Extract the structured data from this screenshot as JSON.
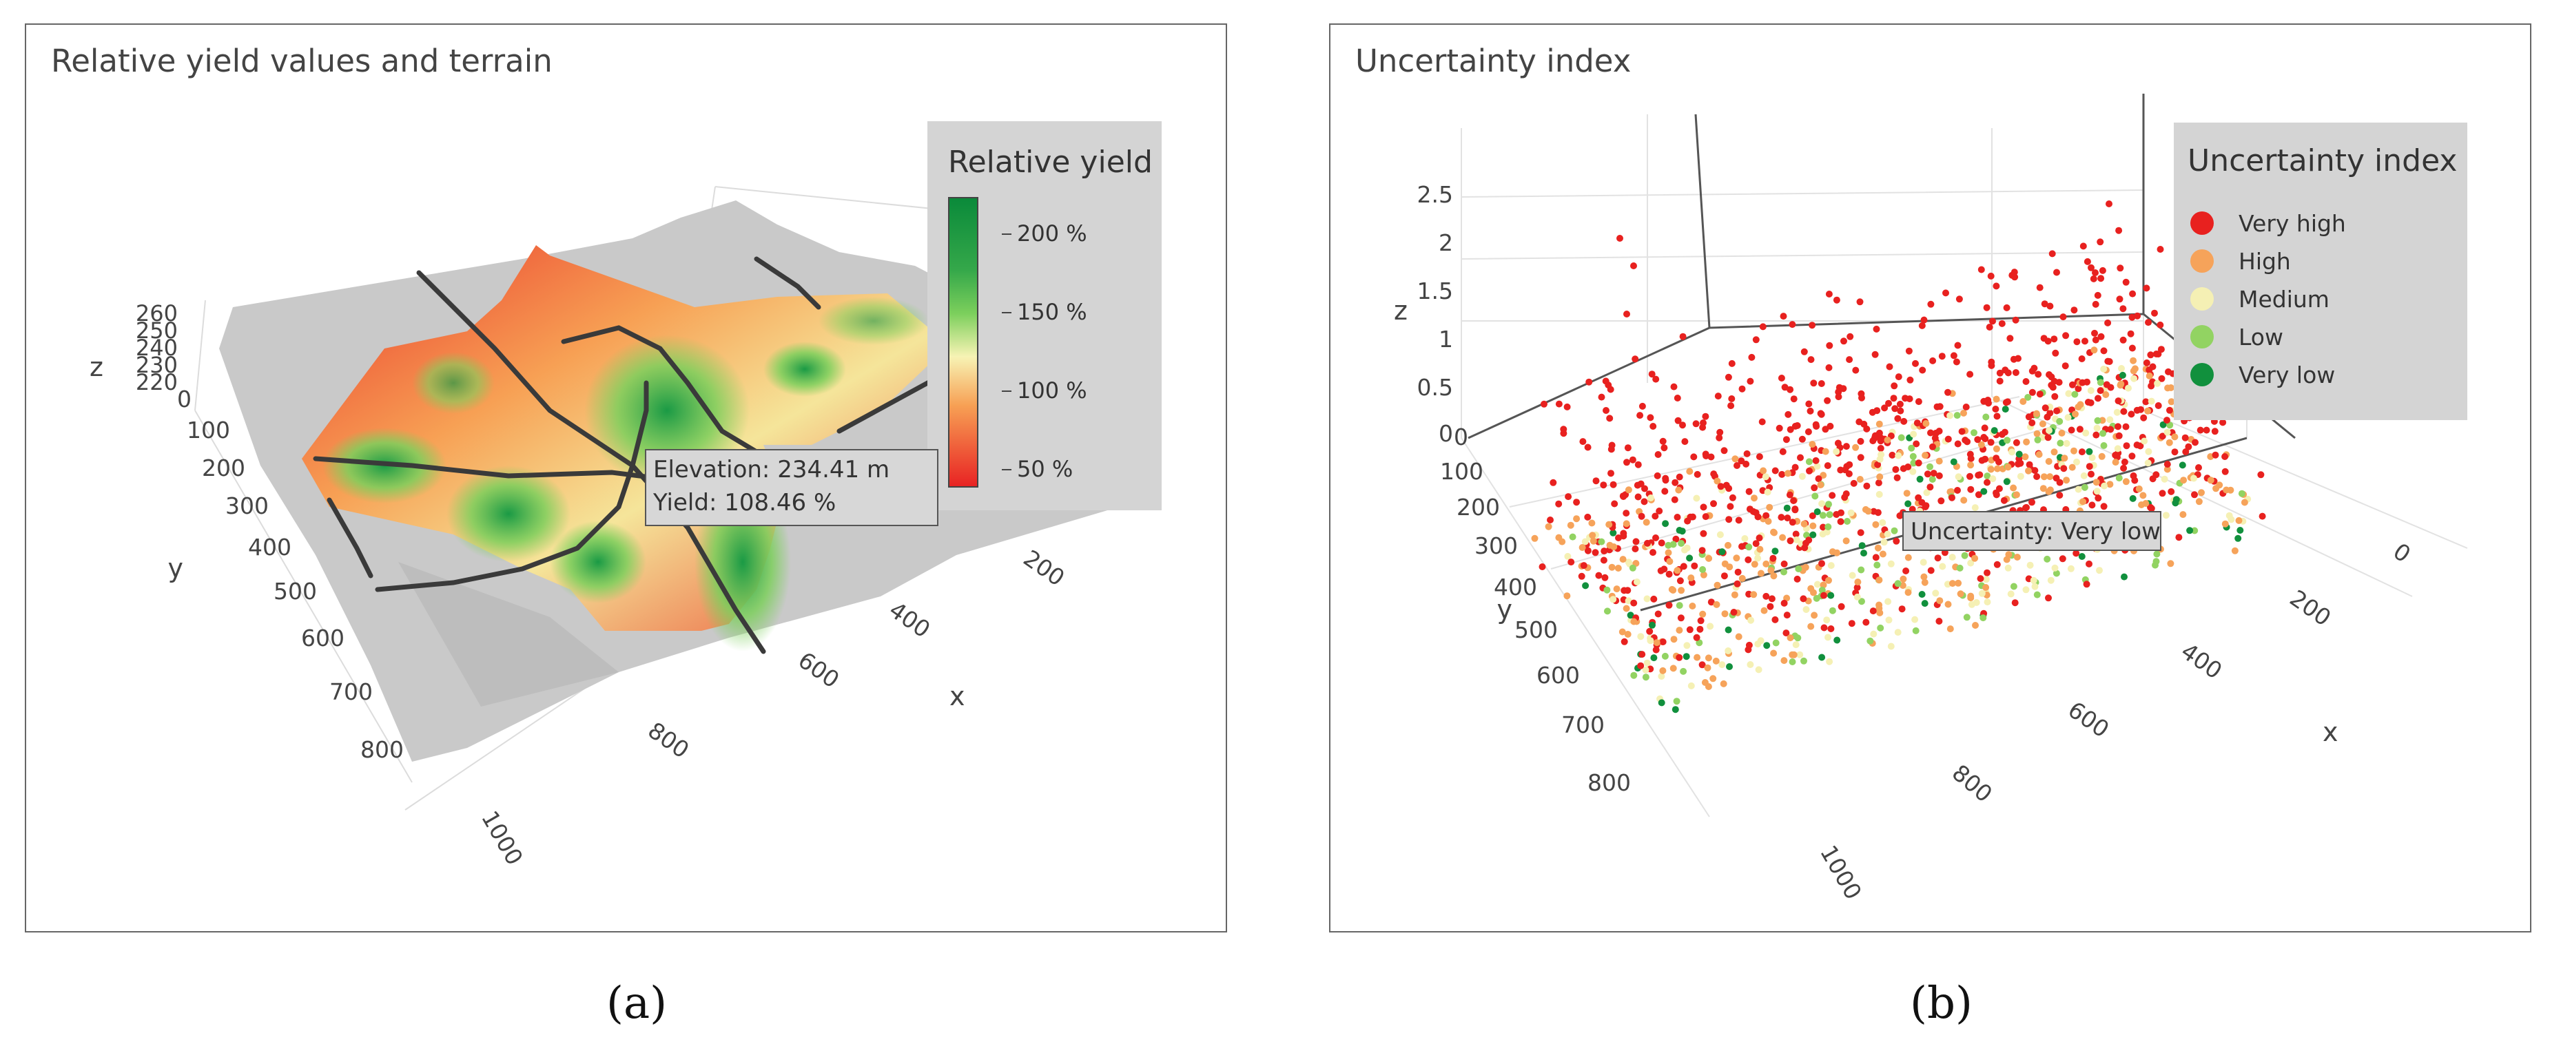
{
  "captions": {
    "a": "(a)",
    "b": "(b)"
  },
  "chart_data": [
    {
      "type": "surface3d",
      "title": "Relative yield values and terrain",
      "xlabel": "x",
      "ylabel": "y",
      "zlabel": "z",
      "x_ticks": [
        "200",
        "400",
        "600",
        "800",
        "1000"
      ],
      "y_ticks": [
        "0",
        "100",
        "200",
        "300",
        "400",
        "500",
        "600",
        "700",
        "800"
      ],
      "z_ticks": [
        "260",
        "250",
        "240",
        "230",
        "220"
      ],
      "colorbar": {
        "title": "Relative yield",
        "ticks": [
          "200 %",
          "150 %",
          "100 %",
          "50 %"
        ],
        "colors": [
          "#0a8a3a",
          "#7ccf5c",
          "#f7f3b4",
          "#f7a054",
          "#e82323"
        ]
      },
      "hover": {
        "elevation": "Elevation: 234.41 m",
        "yield": "Yield: 108.46 %"
      },
      "colors": {
        "terrain": "#c8c8c8",
        "roads": "#3a3a3a"
      }
    },
    {
      "type": "scatter3d",
      "title": "Uncertainty index",
      "xlabel": "x",
      "ylabel": "y",
      "zlabel": "z",
      "x_ticks": [
        "0",
        "200",
        "400",
        "600",
        "800",
        "1000"
      ],
      "y_ticks": [
        "0",
        "100",
        "200",
        "300",
        "400",
        "500",
        "600",
        "700",
        "800"
      ],
      "z_ticks": [
        "2.5",
        "2",
        "1.5",
        "1",
        "0.5",
        "0"
      ],
      "legend": {
        "title": "Uncertainty index",
        "items": [
          {
            "label": "Very high",
            "color": "#e8211f"
          },
          {
            "label": "High",
            "color": "#f6a35a"
          },
          {
            "label": "Medium",
            "color": "#f5f0b4"
          },
          {
            "label": "Low",
            "color": "#92d362"
          },
          {
            "label": "Very low",
            "color": "#11903d"
          }
        ]
      },
      "hover": "Uncertainty: Very low"
    }
  ]
}
